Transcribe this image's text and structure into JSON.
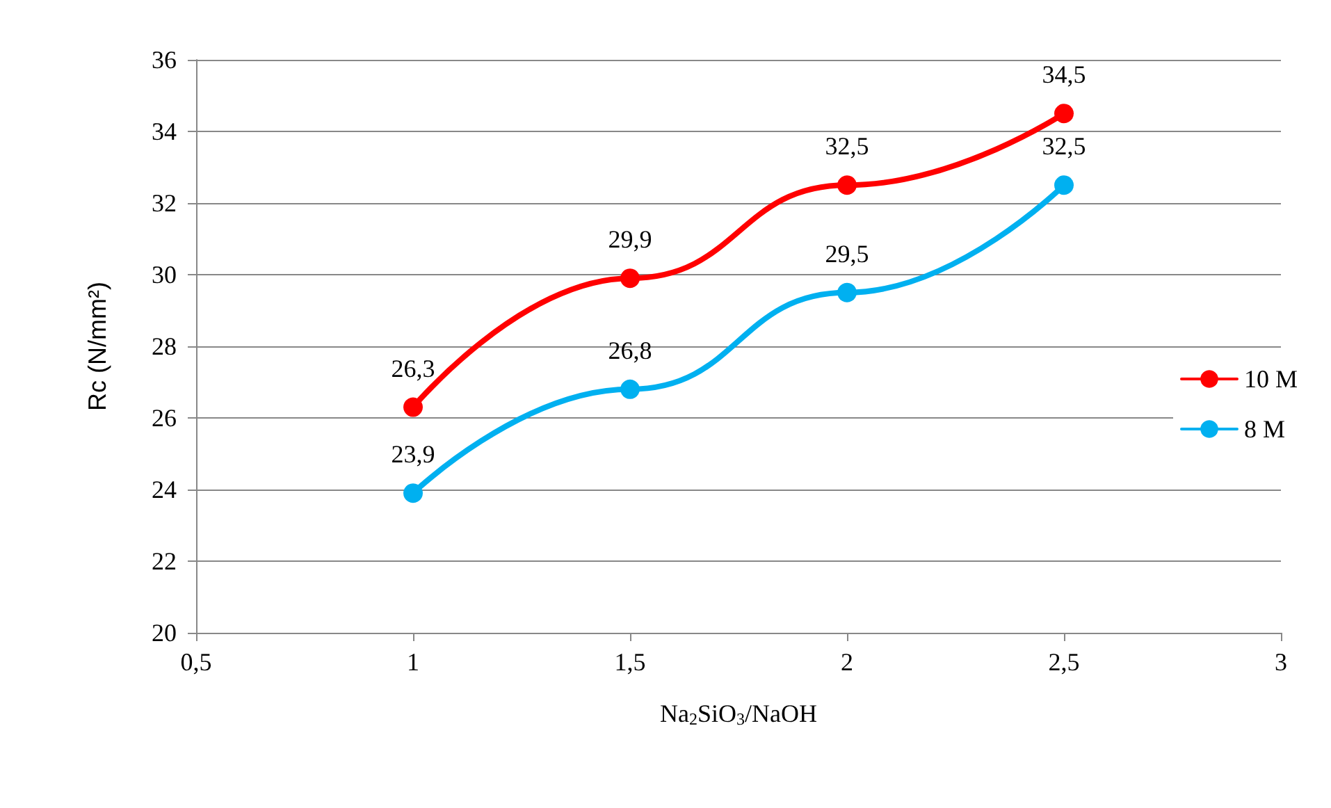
{
  "chart_data": {
    "type": "line",
    "xlabel": "Na$_{2}$SiO$_{3}$/NaOH",
    "ylabel": "Rc (N/mm²)",
    "x": [
      1,
      1.5,
      2,
      2.5
    ],
    "series": [
      {
        "name": "10 M",
        "color": "#ff0000",
        "values": [
          26.3,
          29.9,
          32.5,
          34.5
        ],
        "value_labels": [
          "26,3",
          "29,9",
          "32,5",
          "34,5"
        ]
      },
      {
        "name": "8 M",
        "color": "#00b0f0",
        "values": [
          23.9,
          26.8,
          29.5,
          32.5
        ],
        "value_labels": [
          "23,9",
          "26,8",
          "29,5",
          "32,5"
        ]
      }
    ],
    "xlim": [
      0.5,
      3
    ],
    "xticks": [
      {
        "value": 0.5,
        "label": "0,5"
      },
      1,
      {
        "value": 1.5,
        "label": "1,5"
      },
      2,
      {
        "value": 2.5,
        "label": "2,5"
      },
      3
    ],
    "ylim": [
      20,
      36
    ],
    "yticks": [
      20,
      22,
      24,
      26,
      28,
      30,
      32,
      34,
      36
    ],
    "grid": "y",
    "legend": "right",
    "marker": "circle",
    "line_style": "solid"
  }
}
